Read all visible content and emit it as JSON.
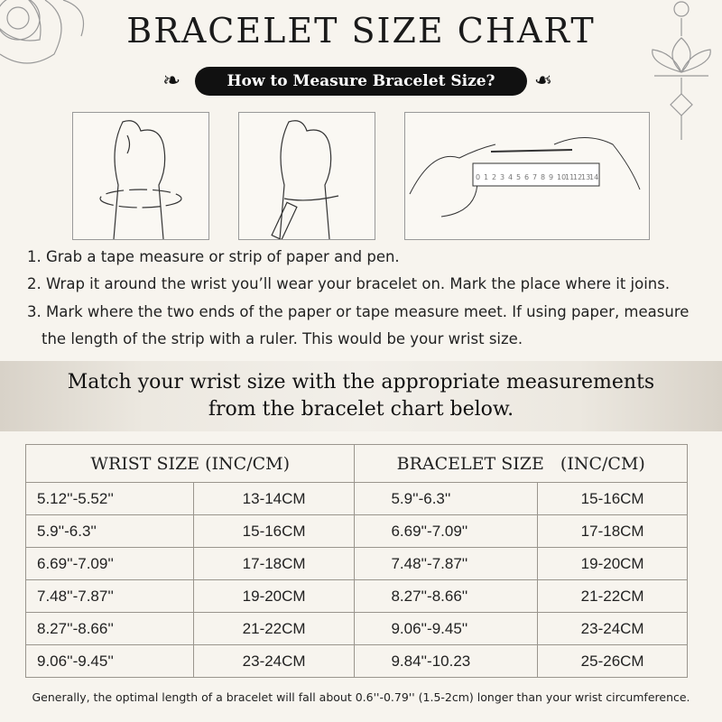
{
  "title": "BRACELET SIZE CHART",
  "subtitle": "How to Measure Bracelet Size?",
  "ruler_numbers": [
    "0",
    "1",
    "2",
    "3",
    "4",
    "5",
    "6",
    "7",
    "8",
    "9",
    "10",
    "11",
    "12",
    "13",
    "14"
  ],
  "steps": [
    "1. Grab a tape measure or strip of paper and pen.",
    "2. Wrap it around the wrist you’ll wear your bracelet on. Mark the place where it joins.",
    "3. Mark where the two ends of the paper or tape measure meet. If using paper, measure",
    "the length of the strip with a ruler. This would be your wrist size."
  ],
  "band": {
    "line1": "Match your wrist size with the appropriate measurements",
    "line2": "from the bracelet chart below."
  },
  "table": {
    "headers": [
      "WRIST SIZE (INC/CM)",
      "BRACELET SIZE   (INC/CM)"
    ],
    "rows": [
      [
        "5.12''-5.52''",
        "13-14CM",
        "5.9''-6.3''",
        "15-16CM"
      ],
      [
        "5.9''-6.3''",
        "15-16CM",
        "6.69''-7.09''",
        "17-18CM"
      ],
      [
        "6.69''-7.09''",
        "17-18CM",
        "7.48''-7.87''",
        "19-20CM"
      ],
      [
        "7.48''-7.87''",
        "19-20CM",
        "8.27''-8.66''",
        "21-22CM"
      ],
      [
        "8.27''-8.66''",
        "21-22CM",
        "9.06''-9.45''",
        "23-24CM"
      ],
      [
        "9.06''-9.45''",
        "23-24CM",
        "9.84''-10.23",
        "25-26CM"
      ]
    ]
  },
  "footer": "Generally, the optimal length of a bracelet will fall about 0.6''-0.79'' (1.5-2cm) longer than your wrist circumference."
}
